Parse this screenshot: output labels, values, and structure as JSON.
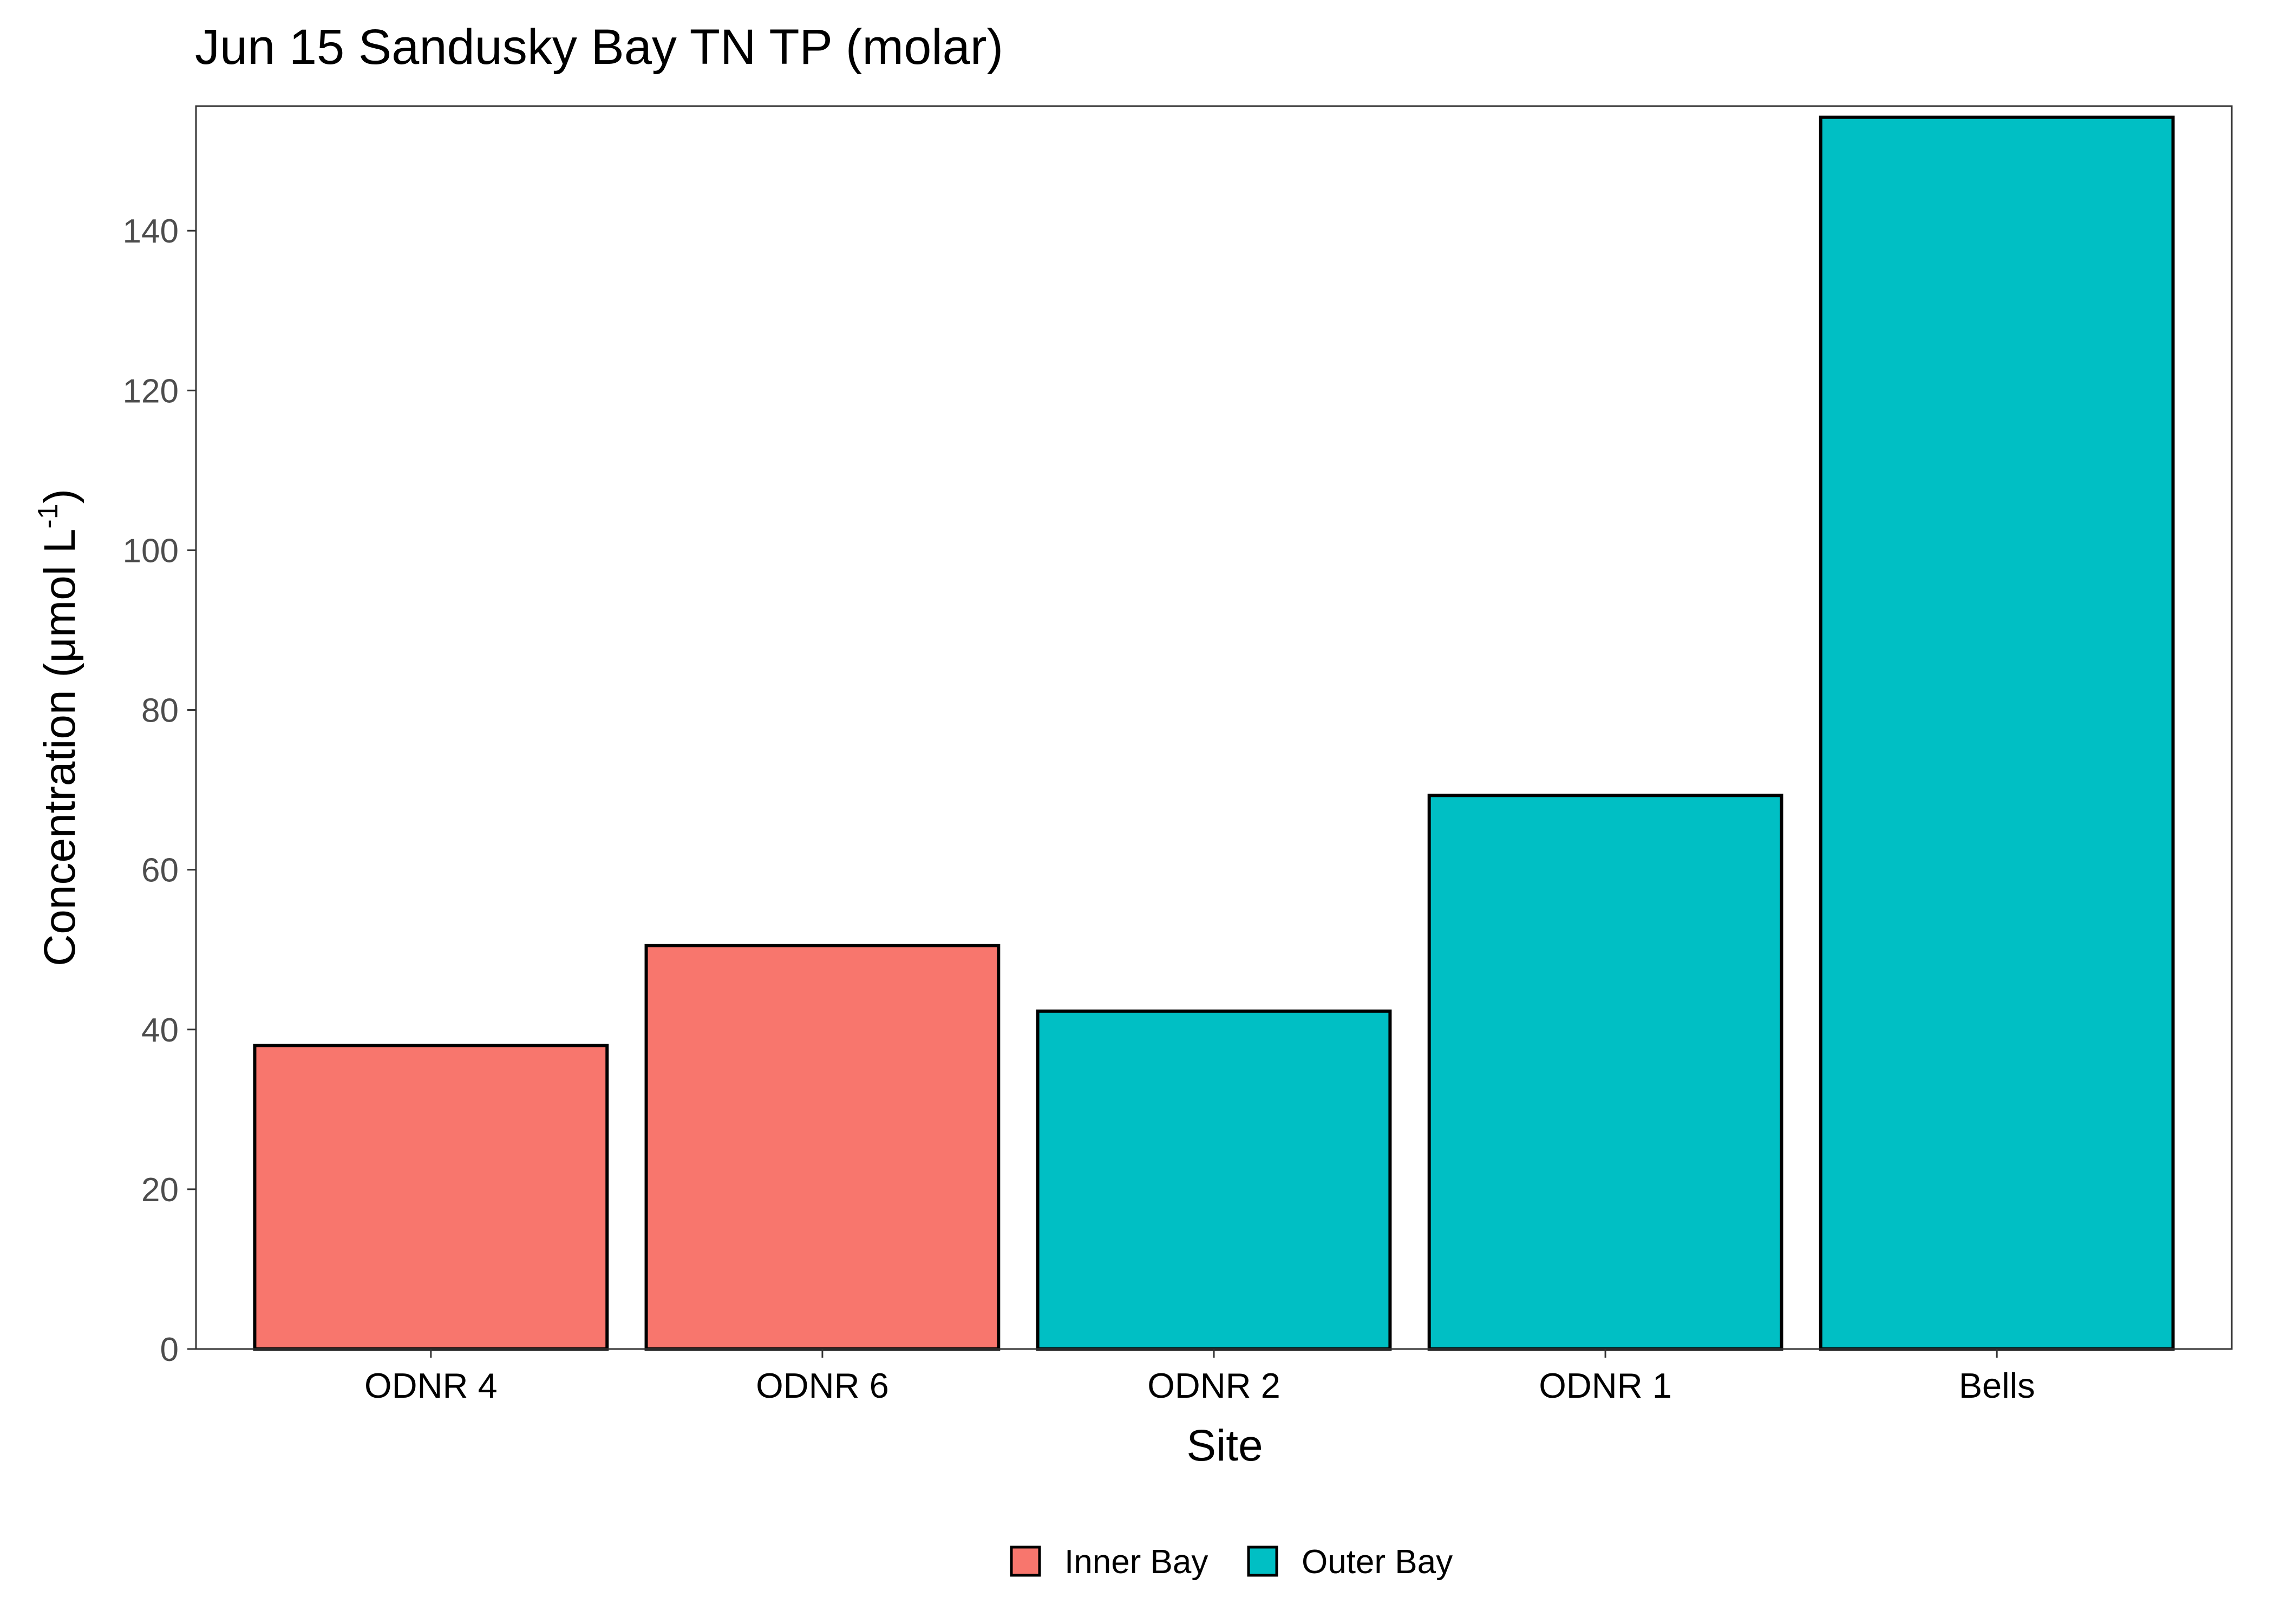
{
  "chart_data": {
    "type": "bar",
    "title": "Jun 15 Sandusky Bay TN TP (molar)",
    "xlabel": "Site",
    "ylabel_main": "Concentration (μmol L",
    "ylabel_sup": "-1",
    "ylabel_close": ")",
    "categories": [
      "ODNR 4",
      "ODNR 6",
      "ODNR 2",
      "ODNR 1",
      "Bells"
    ],
    "values": [
      38,
      50.5,
      42.3,
      69.3,
      154.2
    ],
    "groups": [
      "Inner Bay",
      "Inner Bay",
      "Outer Bay",
      "Outer Bay",
      "Outer Bay"
    ],
    "yticks": [
      0,
      20,
      40,
      60,
      80,
      100,
      120,
      140
    ],
    "ylim": [
      0,
      155.6
    ],
    "grid": false,
    "legend": {
      "position": "bottom",
      "entries": [
        {
          "label": "Inner Bay",
          "color": "#F8766D"
        },
        {
          "label": "Outer Bay",
          "color": "#00BFC4"
        }
      ]
    }
  }
}
